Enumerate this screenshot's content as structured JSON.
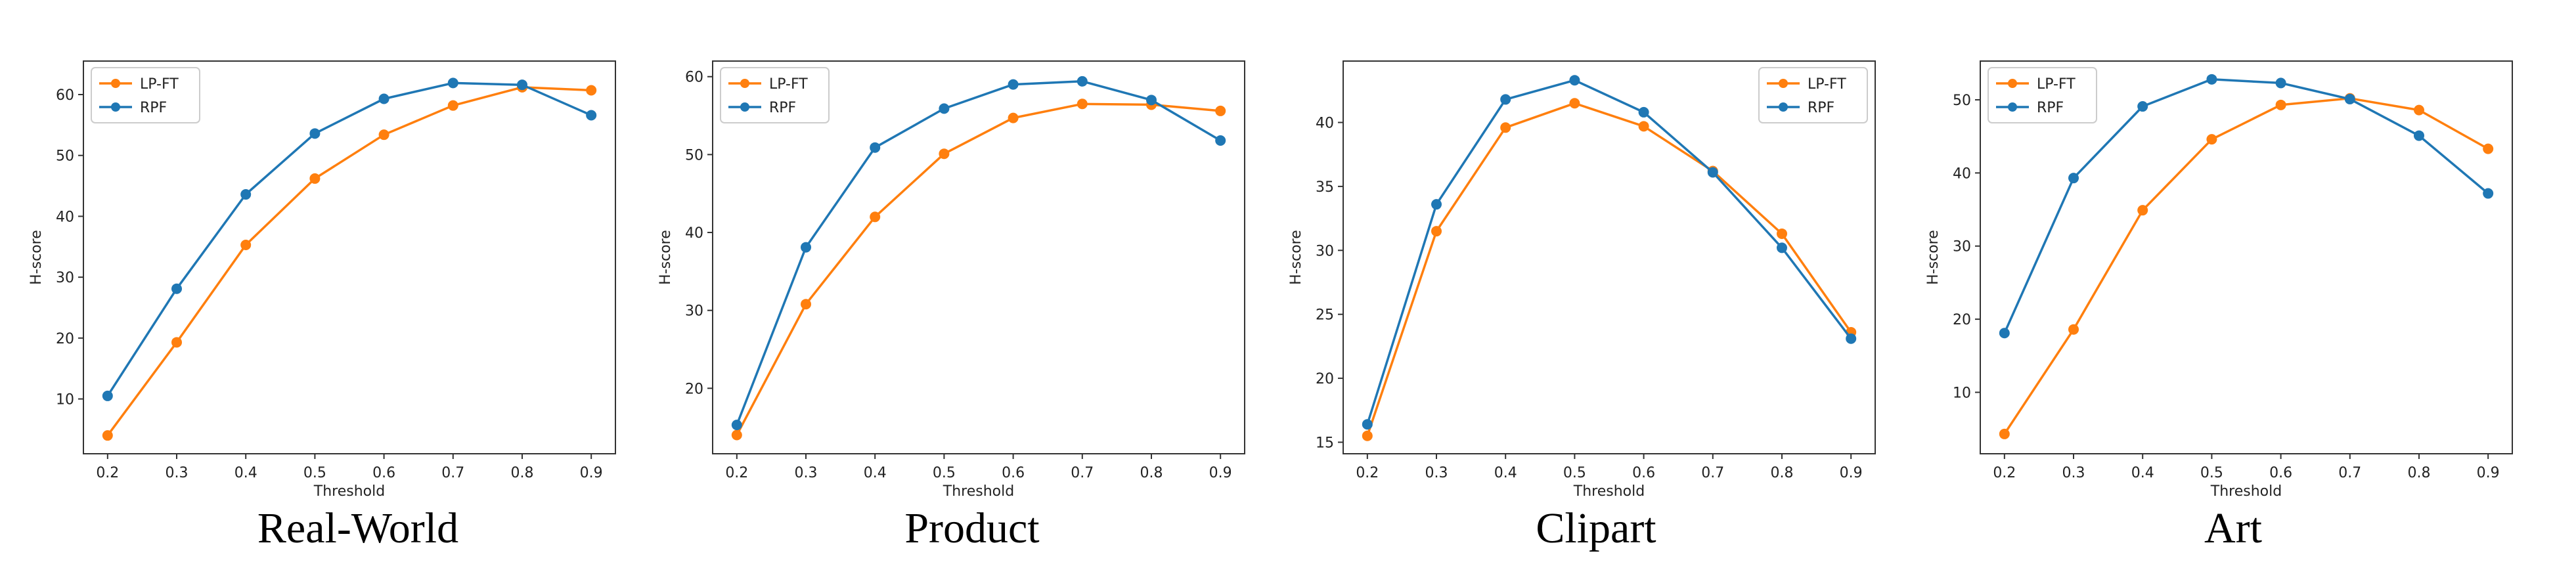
{
  "figure": {
    "captions": [
      "Real-World",
      "Product",
      "Clipart",
      "Art"
    ]
  },
  "colors": {
    "lpft": "#ff7f0e",
    "rpf": "#1f77b4",
    "axis": "#333333"
  },
  "chart_data": [
    {
      "type": "line",
      "title": "Real-World",
      "xlabel": "Threshold",
      "ylabel": "H-score",
      "x": [
        0.2,
        0.3,
        0.4,
        0.5,
        0.6,
        0.7,
        0.8,
        0.9
      ],
      "x_ticks": [
        "0.2",
        "0.3",
        "0.4",
        "0.5",
        "0.6",
        "0.7",
        "0.8",
        "0.9"
      ],
      "xlim": [
        0.165,
        0.935
      ],
      "ylim": [
        1.0,
        65.5
      ],
      "y_ticks": [
        10,
        20,
        30,
        40,
        50,
        60
      ],
      "legend": "upper left",
      "series": [
        {
          "name": "LP-FT",
          "color": "#ff7f0e",
          "values": [
            4.0,
            19.3,
            35.3,
            46.2,
            53.4,
            58.2,
            61.2,
            60.7
          ]
        },
        {
          "name": "RPF",
          "color": "#1f77b4",
          "values": [
            10.5,
            28.1,
            43.6,
            53.6,
            59.3,
            61.9,
            61.6,
            56.6
          ]
        }
      ]
    },
    {
      "type": "line",
      "title": "Product",
      "xlabel": "Threshold",
      "ylabel": "H-score",
      "x": [
        0.2,
        0.3,
        0.4,
        0.5,
        0.6,
        0.7,
        0.8,
        0.9
      ],
      "x_ticks": [
        "0.2",
        "0.3",
        "0.4",
        "0.5",
        "0.6",
        "0.7",
        "0.8",
        "0.9"
      ],
      "xlim": [
        0.165,
        0.935
      ],
      "ylim": [
        11.6,
        62.0
      ],
      "y_ticks": [
        20,
        30,
        40,
        50,
        60
      ],
      "legend": "upper left",
      "series": [
        {
          "name": "LP-FT",
          "color": "#ff7f0e",
          "values": [
            14.0,
            30.8,
            42.0,
            50.1,
            54.7,
            56.5,
            56.4,
            55.6
          ]
        },
        {
          "name": "RPF",
          "color": "#1f77b4",
          "values": [
            15.3,
            38.1,
            50.9,
            55.9,
            59.0,
            59.4,
            57.0,
            51.8
          ]
        }
      ]
    },
    {
      "type": "line",
      "title": "Clipart",
      "xlabel": "Threshold",
      "ylabel": "H-score",
      "x": [
        0.2,
        0.3,
        0.4,
        0.5,
        0.6,
        0.7,
        0.8,
        0.9
      ],
      "x_ticks": [
        "0.2",
        "0.3",
        "0.4",
        "0.5",
        "0.6",
        "0.7",
        "0.8",
        "0.9"
      ],
      "xlim": [
        0.165,
        0.935
      ],
      "ylim": [
        14.1,
        44.8
      ],
      "y_ticks": [
        15,
        20,
        25,
        30,
        35,
        40
      ],
      "legend": "upper right",
      "series": [
        {
          "name": "LP-FT",
          "color": "#ff7f0e",
          "values": [
            15.5,
            31.5,
            39.6,
            41.5,
            39.7,
            36.2,
            31.3,
            23.6
          ]
        },
        {
          "name": "RPF",
          "color": "#1f77b4",
          "values": [
            16.4,
            33.6,
            41.8,
            43.3,
            40.8,
            36.1,
            30.2,
            23.1
          ]
        }
      ]
    },
    {
      "type": "line",
      "title": "Art",
      "xlabel": "Threshold",
      "ylabel": "H-score",
      "x": [
        0.2,
        0.3,
        0.4,
        0.5,
        0.6,
        0.7,
        0.8,
        0.9
      ],
      "x_ticks": [
        "0.2",
        "0.3",
        "0.4",
        "0.5",
        "0.6",
        "0.7",
        "0.8",
        "0.9"
      ],
      "xlim": [
        0.165,
        0.935
      ],
      "ylim": [
        1.6,
        55.3
      ],
      "y_ticks": [
        10,
        20,
        30,
        40,
        50
      ],
      "legend": "upper left",
      "series": [
        {
          "name": "LP-FT",
          "color": "#ff7f0e",
          "values": [
            4.3,
            18.6,
            34.9,
            44.6,
            49.3,
            50.2,
            48.6,
            43.3
          ]
        },
        {
          "name": "RPF",
          "color": "#1f77b4",
          "values": [
            18.1,
            39.3,
            49.1,
            52.8,
            52.3,
            50.1,
            45.1,
            37.2
          ]
        }
      ]
    }
  ]
}
